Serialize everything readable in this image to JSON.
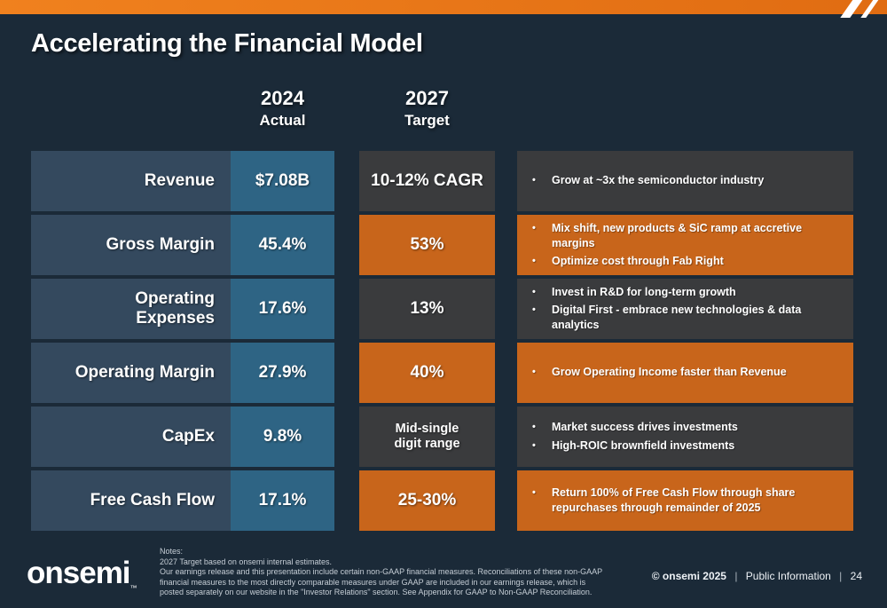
{
  "title": "Accelerating the Financial Model",
  "columns": {
    "actual": {
      "year": "2024",
      "label": "Actual"
    },
    "target": {
      "year": "2027",
      "label": "Target"
    }
  },
  "rows": [
    {
      "label": "Revenue",
      "actual": "$7.08B",
      "target": "10-12% CAGR",
      "highlight": false,
      "bullets": [
        "Grow at ~3x the semiconductor industry"
      ]
    },
    {
      "label": "Gross Margin",
      "actual": "45.4%",
      "target": "53%",
      "highlight": true,
      "bullets": [
        "Mix shift, new products & SiC ramp at accretive margins",
        "Optimize cost through Fab Right"
      ]
    },
    {
      "label": "Operating Expenses",
      "actual": "17.6%",
      "target": "13%",
      "highlight": false,
      "bullets": [
        "Invest in R&D for long-term growth",
        "Digital First - embrace new technologies & data analytics"
      ]
    },
    {
      "label": "Operating Margin",
      "actual": "27.9%",
      "target": "40%",
      "highlight": true,
      "bullets": [
        "Grow Operating Income faster than Revenue"
      ]
    },
    {
      "label": "CapEx",
      "actual": "9.8%",
      "target": "Mid-single\ndigit range",
      "highlight": false,
      "bullets": [
        "Market success drives investments",
        "High-ROIC brownfield investments"
      ]
    },
    {
      "label": "Free Cash Flow",
      "actual": "17.1%",
      "target": "25-30%",
      "highlight": true,
      "bullets": [
        "Return 100% of Free Cash Flow through share repurchases through remainder of 2025"
      ]
    }
  ],
  "bullet_glyph": "•",
  "footer": {
    "notes_lines": [
      "Notes:",
      "2027 Target based on onsemi internal estimates.",
      "Our earnings release and this presentation include certain non-GAAP financial measures. Reconciliations of these non-GAAP",
      "financial measures to the most directly comparable measures under GAAP are included in our earnings release, which is",
      "posted separately on our website in the \"Investor Relations\" section. See Appendix for GAAP to Non-GAAP Reconciliation."
    ],
    "logo_text": "onsemi",
    "logo_tm": "™",
    "copyright": "© onsemi 2025",
    "classification": "Public Information",
    "page_number": "24"
  },
  "colors": {
    "background": "#1b2a38",
    "accent_orange": "#e8741c",
    "highlight_orange": "#c8651b",
    "label_cell": "#34495e",
    "actual_cell": "#2e6484",
    "neutral_cell": "#3a3b3d"
  }
}
